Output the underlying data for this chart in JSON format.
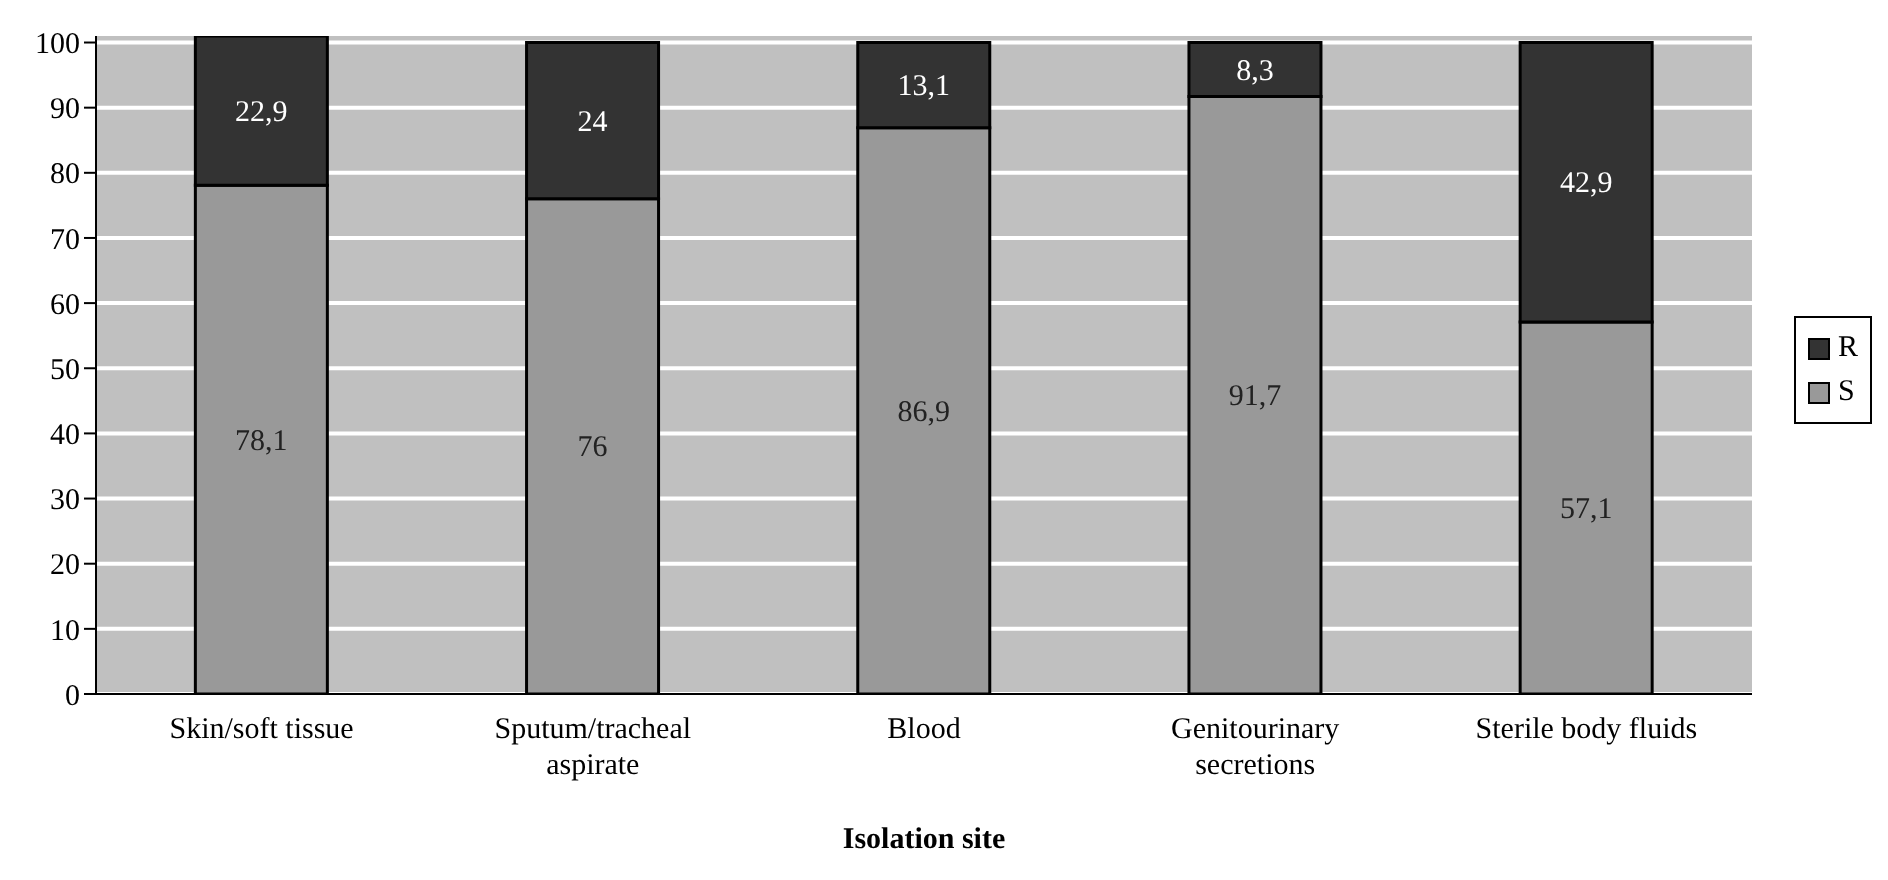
{
  "chart_data": {
    "type": "bar",
    "stacked": true,
    "xlabel": "Isolation site",
    "categories": [
      "Skin/soft tissue",
      "Sputum/tracheal aspirate",
      "Blood",
      "Genitourinary secretions",
      "Sterile body fluids"
    ],
    "series": [
      {
        "name": "S",
        "color": "#999999",
        "values": [
          78.1,
          76,
          86.9,
          91.7,
          57.1
        ],
        "value_labels": [
          "78,1",
          "76",
          "86,9",
          "91,7",
          "57,1"
        ]
      },
      {
        "name": "R",
        "color": "#333333",
        "values": [
          22.9,
          24,
          13.1,
          8.3,
          42.9
        ],
        "value_labels": [
          "22,9",
          "24",
          "13,1",
          "8,3",
          "42,9"
        ]
      }
    ],
    "ylim": [
      0,
      101
    ],
    "yticks": [
      0,
      10,
      20,
      30,
      40,
      50,
      60,
      70,
      80,
      90,
      100
    ],
    "grid": "y",
    "legend": "right"
  }
}
